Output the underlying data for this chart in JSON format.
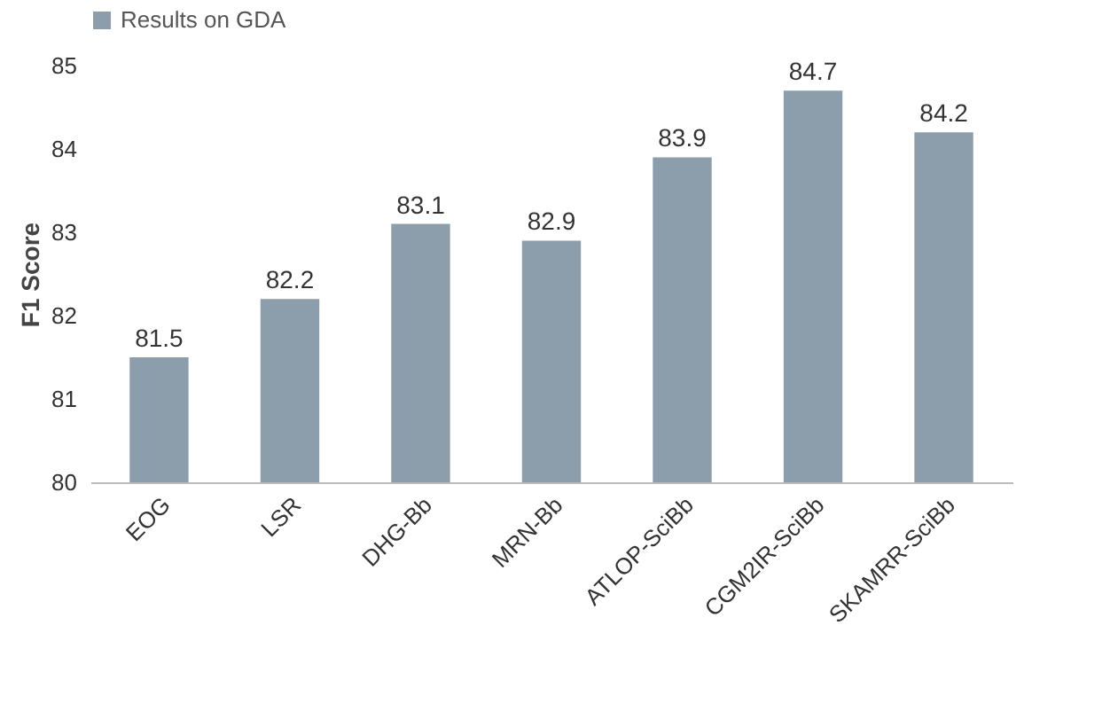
{
  "chart_data": {
    "type": "bar",
    "ylabel": "F1 Score",
    "categories": [
      "EOG",
      "LSR",
      "DHG-Bb",
      "MRN-Bb",
      "ATLOP-SciBb",
      "CGM2IR-SciBb",
      "SKAMRR-SciBb"
    ],
    "series": [
      {
        "name": "Results on GDA",
        "color": "#8c9eab",
        "values": [
          81.5,
          82.2,
          83.1,
          82.9,
          83.9,
          84.7,
          84.2
        ]
      }
    ],
    "ylim": [
      80,
      85
    ],
    "yticks": [
      80,
      81,
      82,
      83,
      84,
      85
    ],
    "grid": false,
    "legend": "top",
    "data_labels": true
  }
}
